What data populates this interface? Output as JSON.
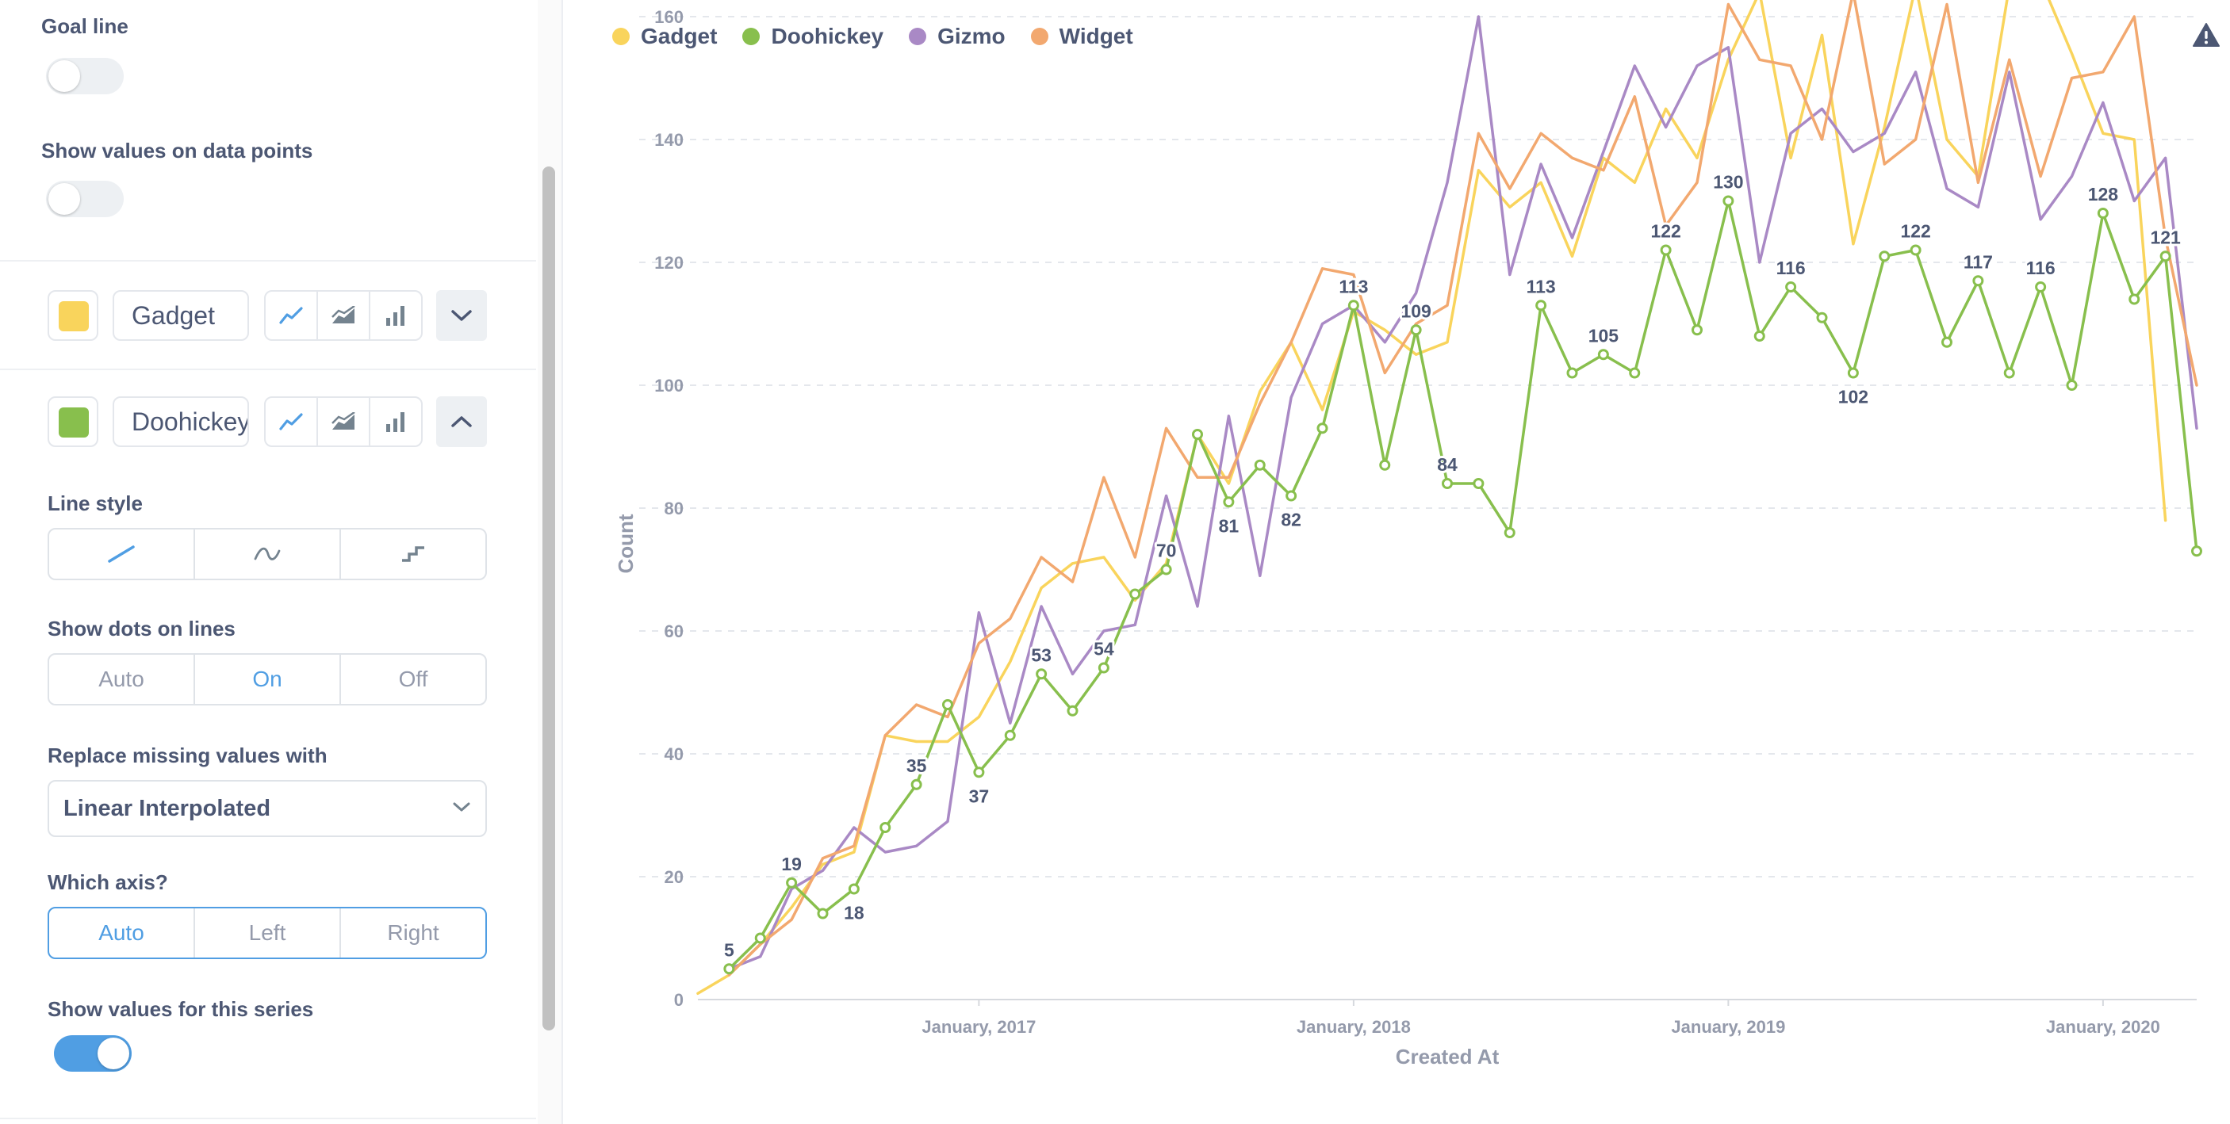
{
  "settings": {
    "goal_line": {
      "label": "Goal line",
      "on": false
    },
    "show_values_points": {
      "label": "Show values on data points",
      "on": false
    },
    "series_rows": [
      {
        "name": "Gadget",
        "color": "#f9d45c",
        "expanded": false
      },
      {
        "name": "Doohickey",
        "color": "#88bf4d",
        "expanded": true
      }
    ],
    "line_style": {
      "label": "Line style",
      "options": [
        "line-icon",
        "curve-icon",
        "step-icon"
      ]
    },
    "show_dots": {
      "label": "Show dots on lines",
      "options": [
        "Auto",
        "On",
        "Off"
      ],
      "selected": "On"
    },
    "missing_values": {
      "label": "Replace missing values with",
      "value": "Linear Interpolated"
    },
    "which_axis": {
      "label": "Which axis?",
      "options": [
        "Auto",
        "Left",
        "Right"
      ],
      "selected": "Auto"
    },
    "show_values_series": {
      "label": "Show values for this series",
      "on": true
    }
  },
  "colors": {
    "gadget": "#f9d45c",
    "doohickey": "#88bf4d",
    "gizmo": "#a989c5",
    "widget": "#f2a86f",
    "brand": "#509ee3",
    "text": "#4c5773",
    "muted": "#949aab"
  },
  "chart_data": {
    "type": "line",
    "xlabel": "Created At",
    "ylabel": "Count",
    "ylim": [
      0,
      170
    ],
    "yticks": [
      0,
      20,
      40,
      60,
      80,
      100,
      120,
      140,
      160
    ],
    "xtick_labels": [
      {
        "month": "2017-01",
        "label": "January, 2017"
      },
      {
        "month": "2018-01",
        "label": "January, 2018"
      },
      {
        "month": "2019-01",
        "label": "January, 2019"
      },
      {
        "month": "2020-01",
        "label": "January, 2020"
      }
    ],
    "x_start": "2016-04",
    "x_end": "2020-04",
    "grid": true,
    "legend": "top-left",
    "series": [
      {
        "name": "Gadget",
        "color": "#f9d45c",
        "start": "2016-04",
        "dots": false,
        "labels": false,
        "values": [
          1,
          4,
          9,
          15,
          22,
          24,
          43,
          42,
          42,
          46,
          55,
          67,
          71,
          72,
          65,
          71,
          92,
          84,
          99,
          107,
          96,
          112,
          109,
          105,
          107,
          135,
          129,
          133,
          121,
          137,
          133,
          145,
          137,
          153,
          164,
          137,
          157,
          123,
          142,
          165,
          140,
          134,
          165,
          166,
          154,
          141,
          140,
          78
        ]
      },
      {
        "name": "Doohickey",
        "color": "#88bf4d",
        "start": "2016-05",
        "dots": true,
        "labels": true,
        "values": [
          5,
          10,
          19,
          14,
          18,
          28,
          35,
          48,
          37,
          43,
          53,
          47,
          54,
          66,
          70,
          92,
          81,
          87,
          82,
          93,
          113,
          87,
          109,
          84,
          84,
          76,
          113,
          102,
          105,
          102,
          122,
          109,
          130,
          108,
          116,
          111,
          102,
          121,
          122,
          107,
          117,
          102,
          116,
          100,
          128,
          114,
          121,
          73
        ],
        "labeled_values": [
          5,
          19,
          18,
          35,
          37,
          53,
          54,
          70,
          81,
          82,
          113,
          109,
          84,
          113,
          105,
          122,
          130,
          116,
          102,
          122,
          117,
          116,
          128,
          121
        ]
      },
      {
        "name": "Gizmo",
        "color": "#a989c5",
        "start": "2016-05",
        "dots": false,
        "labels": false,
        "values": [
          5,
          7,
          18,
          21,
          28,
          24,
          25,
          29,
          63,
          45,
          64,
          53,
          60,
          61,
          82,
          64,
          95,
          69,
          98,
          110,
          113,
          107,
          115,
          133,
          160,
          118,
          136,
          124,
          138,
          152,
          142,
          152,
          155,
          120,
          141,
          145,
          138,
          141,
          151,
          132,
          129,
          151,
          127,
          134,
          146,
          130,
          137,
          93
        ]
      },
      {
        "name": "Widget",
        "color": "#f2a86f",
        "start": "2016-05",
        "dots": false,
        "labels": false,
        "values": [
          4,
          9,
          13,
          23,
          25,
          43,
          48,
          46,
          58,
          62,
          72,
          68,
          85,
          72,
          93,
          85,
          85,
          97,
          107,
          119,
          118,
          102,
          110,
          113,
          141,
          132,
          141,
          137,
          135,
          147,
          126,
          133,
          162,
          153,
          152,
          140,
          164,
          136,
          140,
          162,
          133,
          153,
          134,
          150,
          151,
          160,
          124,
          100
        ]
      }
    ]
  }
}
